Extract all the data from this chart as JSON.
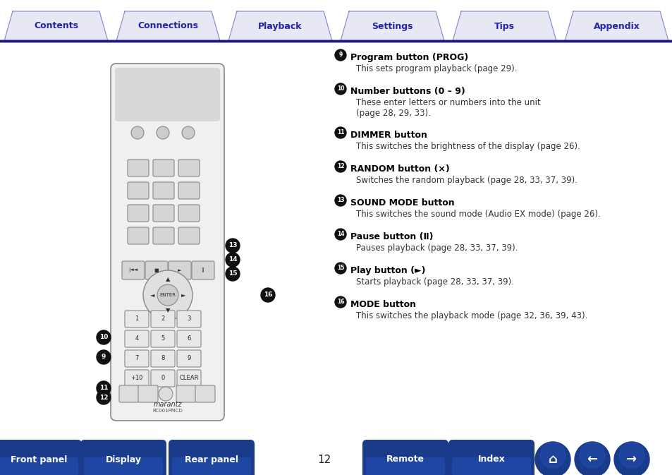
{
  "tab_labels": [
    "Contents",
    "Connections",
    "Playback",
    "Settings",
    "Tips",
    "Appendix"
  ],
  "tab_color": "#3333aa",
  "tab_bg": "#e8e8f8",
  "tab_border": "#7777bb",
  "header_line_color": "#1a1a7a",
  "body_bg": "#ffffff",
  "right_text": [
    {
      "num": "9",
      "bold": "Program button (PROG)",
      "normal": "This sets program playback (⁠​page 29)."
    },
    {
      "num": "10",
      "bold": "Number buttons (0 – 9)",
      "normal": "These enter letters or numbers into the unit\n(⁠​page 28, 29, 33)."
    },
    {
      "num": "11",
      "bold": "DIMMER button",
      "normal": "This switches the brightness of the display (⁠​page 26)."
    },
    {
      "num": "12",
      "bold": "RANDOM button (×)",
      "normal": "Switches the random playback (⁠​page 28, 33, 37, 39)."
    },
    {
      "num": "13",
      "bold": "SOUND MODE button",
      "normal": "This switches the sound mode (Audio EX mode) (⁠​page 26)."
    },
    {
      "num": "14",
      "bold": "Pause button (Ⅱ)",
      "normal": "Pauses playback (⁠​page 28, 33, 37, 39)."
    },
    {
      "num": "15",
      "bold": "Play button (►)",
      "normal": "Starts playback (⁠​page 28, 33, 37, 39)."
    },
    {
      "num": "16",
      "bold": "MODE button",
      "normal": "This switches the playback mode (⁠​page 32, 36, 39, 43)."
    }
  ],
  "bottom_buttons": [
    "Front panel",
    "Display",
    "Rear panel",
    "Remote",
    "Index"
  ],
  "page_num": "12",
  "btn_color": "#1a3a8a",
  "btn_text_color": "#ffffff"
}
